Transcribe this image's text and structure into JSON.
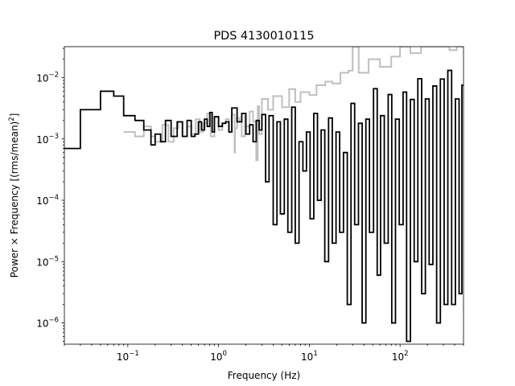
{
  "chart_data": {
    "type": "line",
    "title": "PDS 4130010115",
    "xlabel": "Frequency (Hz)",
    "ylabel_main": "Power × Frequency [(rms/mean)",
    "ylabel_sup": "2",
    "ylabel_tail": "]",
    "xscale": "log",
    "yscale": "log",
    "xlim": [
      0.02,
      500
    ],
    "ylim": [
      4.5e-07,
      0.032
    ],
    "xticks": [
      {
        "value": 0.1,
        "base": "10",
        "exp": "−1"
      },
      {
        "value": 1,
        "base": "10",
        "exp": "0"
      },
      {
        "value": 10,
        "base": "10",
        "exp": "1"
      },
      {
        "value": 100,
        "base": "10",
        "exp": "2"
      }
    ],
    "yticks": [
      {
        "value": 1e-06,
        "base": "10",
        "exp": "−6"
      },
      {
        "value": 1e-05,
        "base": "10",
        "exp": "−5"
      },
      {
        "value": 0.0001,
        "base": "10",
        "exp": "−4"
      },
      {
        "value": 0.001,
        "base": "10",
        "exp": "−3"
      },
      {
        "value": 0.01,
        "base": "10",
        "exp": "−2"
      }
    ],
    "grid": false,
    "colors": {
      "unbinned": "#bfbfbf",
      "rebinned": "#000000"
    },
    "series": [
      {
        "style": "steps-post",
        "color": "#bfbfbf",
        "note": "unbinned PDS (dense, approximate envelope)",
        "x": [
          0.09,
          0.12,
          0.15,
          0.18,
          0.2,
          0.24,
          0.28,
          0.32,
          0.36,
          0.4,
          0.45,
          0.5,
          0.56,
          0.62,
          0.68,
          0.75,
          0.82,
          0.9,
          1.0,
          1.1,
          1.2,
          1.3,
          1.4,
          1.5,
          1.52,
          1.6,
          1.7,
          1.8,
          1.95,
          2.0,
          2.2,
          2.4,
          2.6,
          2.7,
          2.8,
          3.0,
          3.5,
          4.0,
          5.0,
          6.0,
          7.0,
          8.0,
          10,
          12,
          15,
          18,
          22,
          27,
          30,
          35,
          45,
          60,
          80,
          100,
          130,
          170,
          220,
          280,
          350,
          420,
          500
        ],
        "y": [
          0.0013,
          0.0011,
          0.0016,
          0.0011,
          0.0009,
          0.0017,
          0.0009,
          0.0015,
          0.0019,
          0.0011,
          0.0016,
          0.0012,
          0.0021,
          0.0013,
          0.0018,
          0.0026,
          0.0011,
          0.0023,
          0.0014,
          0.0018,
          0.0021,
          0.0013,
          0.0025,
          0.0006,
          0.0015,
          0.0022,
          0.0019,
          0.0011,
          0.0024,
          0.0016,
          0.0028,
          0.0019,
          0.00045,
          0.0034,
          0.0012,
          0.0045,
          0.003,
          0.005,
          0.0033,
          0.0065,
          0.004,
          0.0058,
          0.0052,
          0.0075,
          0.0086,
          0.008,
          0.012,
          0.013,
          0.032,
          0.012,
          0.02,
          0.015,
          0.022,
          0.032,
          0.025,
          0.032,
          0.032,
          0.032,
          0.028,
          0.032,
          0.032
        ]
      },
      {
        "style": "steps-post",
        "color": "#000000",
        "note": "rebinned PDS",
        "x": [
          0.02,
          0.03,
          0.05,
          0.07,
          0.09,
          0.12,
          0.15,
          0.18,
          0.2,
          0.23,
          0.26,
          0.3,
          0.35,
          0.4,
          0.45,
          0.5,
          0.55,
          0.6,
          0.65,
          0.7,
          0.75,
          0.8,
          0.85,
          0.9,
          1.0,
          1.1,
          1.2,
          1.3,
          1.4,
          1.6,
          1.8,
          2.0,
          2.2,
          2.4,
          2.6,
          2.8,
          3.0,
          3.3,
          3.6,
          4.0,
          4.4,
          4.8,
          5.3,
          5.8,
          6.4,
          7.0,
          7.7,
          8.5,
          9.3,
          10.2,
          11.2,
          12.3,
          13.5,
          14.8,
          16.3,
          17.9,
          19.7,
          21.6,
          23.8,
          26.2,
          28.8,
          31.6,
          34.8,
          38.2,
          42,
          46,
          51,
          56,
          61,
          67,
          74,
          81,
          89,
          98,
          108,
          118,
          130,
          143,
          157,
          173,
          190,
          209,
          230,
          253,
          278,
          306,
          336,
          370,
          407,
          447,
          480
        ],
        "y": [
          0.0007,
          0.003,
          0.006,
          0.005,
          0.0024,
          0.002,
          0.0014,
          0.0008,
          0.0012,
          0.0009,
          0.002,
          0.0011,
          0.0019,
          0.0011,
          0.002,
          0.0011,
          0.0012,
          0.0019,
          0.0014,
          0.0021,
          0.0016,
          0.0027,
          0.0013,
          0.0023,
          0.0016,
          0.0018,
          0.0019,
          0.0013,
          0.0032,
          0.0019,
          0.0026,
          0.0012,
          0.0017,
          0.0009,
          0.002,
          0.0014,
          0.0025,
          0.0002,
          0.0024,
          4e-05,
          0.0019,
          6e-05,
          0.0021,
          3e-05,
          0.0033,
          2e-05,
          0.0009,
          0.0003,
          0.0013,
          5e-05,
          0.0026,
          0.0001,
          0.0014,
          1e-05,
          0.0022,
          2e-05,
          0.0013,
          3e-05,
          0.0006,
          2e-06,
          0.0038,
          4e-05,
          0.0018,
          1e-06,
          0.0021,
          3e-05,
          0.0066,
          6e-06,
          0.0024,
          2e-05,
          0.0053,
          1e-06,
          0.0021,
          4e-05,
          0.0058,
          5e-07,
          0.0044,
          1e-05,
          0.0096,
          3e-06,
          0.0045,
          9e-06,
          0.0073,
          1e-06,
          0.0095,
          2e-06,
          0.0131,
          2e-06,
          0.0045,
          3e-06,
          0.0075
        ]
      }
    ]
  }
}
